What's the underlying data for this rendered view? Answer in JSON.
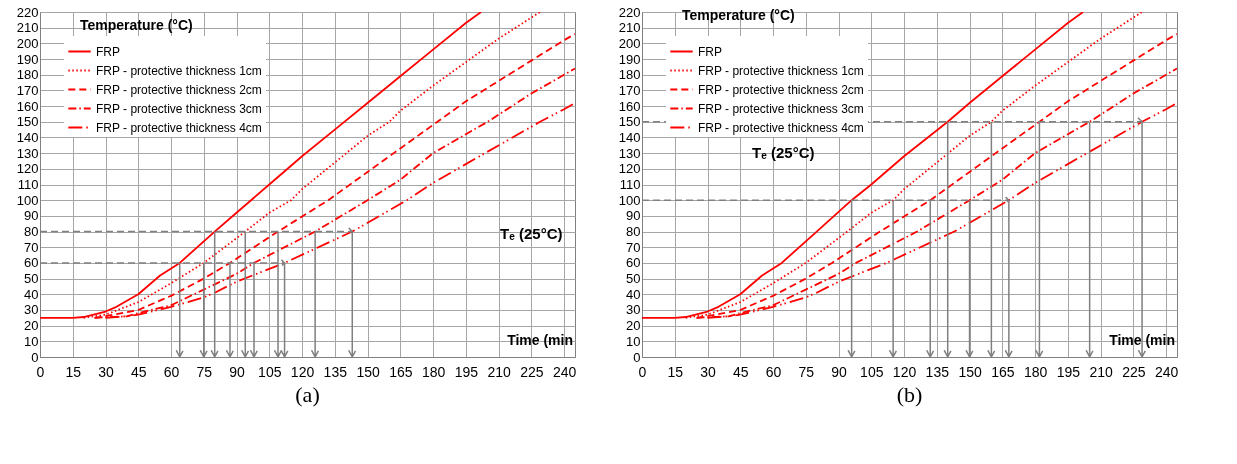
{
  "chart_data": [
    {
      "type": "line",
      "title": "(a)",
      "ylabel": "Temperature (°C)",
      "xlabel": "Time (min",
      "xlim": [
        0,
        245
      ],
      "ylim": [
        0,
        220
      ],
      "xticks": [
        0,
        15,
        30,
        45,
        60,
        75,
        90,
        105,
        120,
        135,
        150,
        165,
        180,
        195,
        210,
        225,
        240
      ],
      "yticks": [
        0,
        10,
        20,
        30,
        40,
        50,
        60,
        70,
        80,
        90,
        100,
        110,
        120,
        130,
        140,
        150,
        160,
        170,
        180,
        190,
        200,
        210,
        220
      ],
      "grid": true,
      "legend": "top left",
      "annotations": [
        "Tₑ (25°C)"
      ],
      "series": [
        {
          "name": "FRP",
          "color": "#ff0000",
          "line_style": "solid",
          "x": [
            0,
            15,
            20,
            30,
            35,
            45,
            55,
            64,
            80,
            90,
            105,
            120,
            135,
            150,
            165,
            180,
            195,
            202
          ],
          "values": [
            25,
            25,
            25.5,
            29,
            32,
            40,
            52,
            60,
            80,
            92,
            110,
            128,
            145,
            162,
            179,
            196,
            213,
            220
          ]
        },
        {
          "name": "FRP - protective thickness 1cm",
          "color": "#ff0000",
          "line_style": "dotted",
          "x": [
            20,
            30,
            45,
            60,
            75,
            94,
            105,
            115,
            120,
            135,
            150,
            160,
            165,
            180,
            195,
            210,
            229
          ],
          "values": [
            25,
            27,
            35,
            47,
            60,
            80,
            92,
            100,
            107,
            124,
            141,
            150,
            157,
            173,
            188,
            203,
            220
          ]
        },
        {
          "name": "FRP - protective thickness 2cm",
          "color": "#ff0000",
          "line_style": "dashed",
          "x": [
            25,
            30,
            45,
            60,
            75,
            87,
            109,
            132,
            150,
            165,
            182,
            195,
            210,
            225,
            240,
            245
          ],
          "values": [
            25,
            26,
            30,
            39,
            50,
            60,
            80,
            100,
            118,
            133,
            150,
            163,
            176,
            189,
            202,
            206
          ]
        },
        {
          "name": "FRP - protective thickness 3cm",
          "color": "#ff0000",
          "line_style": "dashdot",
          "x": [
            25,
            40,
            45,
            60,
            75,
            90,
            98,
            126,
            150,
            165,
            180,
            205,
            225,
            240,
            245
          ],
          "values": [
            25,
            26,
            28,
            33,
            43,
            53,
            60,
            80,
            100,
            113,
            130,
            150,
            168,
            180,
            184
          ]
        },
        {
          "name": "FRP - protective thickness 4cm",
          "color": "#ff0000",
          "line_style": "longdashdot",
          "x": [
            30,
            40,
            45,
            60,
            75,
            80,
            90,
            112,
            143,
            168,
            180,
            195,
            229,
            240,
            245
          ],
          "values": [
            25,
            26,
            27,
            32,
            38,
            41,
            48,
            60,
            80,
            100,
            111,
            123,
            150,
            158,
            162
          ]
        }
      ],
      "ref_lines": [
        {
          "axis": "y",
          "value": 60,
          "color": "#808080",
          "line_style": "dashed"
        },
        {
          "axis": "y",
          "value": 80,
          "color": "#808080",
          "line_style": "dashed"
        },
        {
          "axis": "x",
          "value": 64,
          "color": "#808080"
        },
        {
          "axis": "x",
          "value": 75,
          "color": "#808080"
        },
        {
          "axis": "x",
          "value": 80,
          "color": "#808080"
        },
        {
          "axis": "x",
          "value": 87,
          "color": "#808080"
        },
        {
          "axis": "x",
          "value": 94,
          "color": "#808080"
        },
        {
          "axis": "x",
          "value": 98,
          "color": "#808080"
        },
        {
          "axis": "x",
          "value": 109,
          "color": "#808080"
        },
        {
          "axis": "x",
          "value": 112,
          "color": "#808080"
        },
        {
          "axis": "x",
          "value": 126,
          "color": "#808080"
        },
        {
          "axis": "x",
          "value": 143,
          "color": "#808080"
        }
      ]
    },
    {
      "type": "line",
      "title": "(b)",
      "ylabel": "Temperature (°C)",
      "xlabel": "Time (min",
      "xlim": [
        0,
        245
      ],
      "ylim": [
        0,
        220
      ],
      "xticks": [
        0,
        15,
        30,
        45,
        60,
        75,
        90,
        105,
        120,
        135,
        150,
        165,
        180,
        195,
        210,
        225,
        240
      ],
      "yticks": [
        0,
        10,
        20,
        30,
        40,
        50,
        60,
        70,
        80,
        90,
        100,
        110,
        120,
        130,
        140,
        150,
        160,
        170,
        180,
        190,
        200,
        210,
        220
      ],
      "grid": true,
      "legend": "top left",
      "annotations": [
        "Tₑ (25°C)"
      ],
      "series": [
        {
          "name": "FRP",
          "color": "#ff0000",
          "line_style": "solid",
          "x": [
            0,
            15,
            20,
            30,
            35,
            45,
            55,
            64,
            80,
            96,
            105,
            120,
            140,
            150,
            165,
            180,
            195,
            202
          ],
          "values": [
            25,
            25,
            25.5,
            29,
            32,
            40,
            52,
            60,
            80,
            100,
            110,
            128,
            150,
            162,
            179,
            196,
            213,
            220
          ]
        },
        {
          "name": "FRP - protective thickness 1cm",
          "color": "#ff0000",
          "line_style": "dotted",
          "x": [
            20,
            30,
            45,
            60,
            75,
            94,
            105,
            115,
            120,
            135,
            150,
            160,
            165,
            180,
            195,
            210,
            229
          ],
          "values": [
            25,
            27,
            35,
            47,
            60,
            80,
            92,
            100,
            107,
            124,
            141,
            150,
            157,
            173,
            188,
            203,
            220
          ]
        },
        {
          "name": "FRP - protective thickness 2cm",
          "color": "#ff0000",
          "line_style": "dashed",
          "x": [
            25,
            30,
            45,
            60,
            75,
            87,
            109,
            132,
            150,
            165,
            182,
            195,
            210,
            225,
            240,
            245
          ],
          "values": [
            25,
            26,
            30,
            39,
            50,
            60,
            80,
            100,
            118,
            133,
            150,
            163,
            176,
            189,
            202,
            206
          ]
        },
        {
          "name": "FRP - protective thickness 3cm",
          "color": "#ff0000",
          "line_style": "dashdot",
          "x": [
            25,
            40,
            45,
            60,
            75,
            90,
            98,
            126,
            150,
            165,
            180,
            205,
            225,
            240,
            245
          ],
          "values": [
            25,
            26,
            28,
            33,
            43,
            53,
            60,
            80,
            100,
            113,
            130,
            150,
            168,
            180,
            184
          ]
        },
        {
          "name": "FRP - protective thickness 4cm",
          "color": "#ff0000",
          "line_style": "longdashdot",
          "x": [
            30,
            40,
            45,
            60,
            75,
            80,
            90,
            112,
            143,
            168,
            180,
            195,
            229,
            240,
            245
          ],
          "values": [
            25,
            26,
            27,
            32,
            38,
            41,
            48,
            60,
            80,
            100,
            111,
            123,
            150,
            158,
            162
          ]
        }
      ],
      "ref_lines": [
        {
          "axis": "y",
          "value": 100,
          "color": "#808080",
          "line_style": "dashed"
        },
        {
          "axis": "y",
          "value": 150,
          "color": "#808080",
          "line_style": "dashed"
        },
        {
          "axis": "x",
          "value": 96,
          "color": "#808080"
        },
        {
          "axis": "x",
          "value": 115,
          "color": "#808080"
        },
        {
          "axis": "x",
          "value": 132,
          "color": "#808080"
        },
        {
          "axis": "x",
          "value": 140,
          "color": "#808080"
        },
        {
          "axis": "x",
          "value": 150,
          "color": "#808080"
        },
        {
          "axis": "x",
          "value": 160,
          "color": "#808080"
        },
        {
          "axis": "x",
          "value": 168,
          "color": "#808080"
        },
        {
          "axis": "x",
          "value": 182,
          "color": "#808080"
        },
        {
          "axis": "x",
          "value": 205,
          "color": "#808080"
        },
        {
          "axis": "x",
          "value": 229,
          "color": "#808080"
        }
      ]
    }
  ]
}
